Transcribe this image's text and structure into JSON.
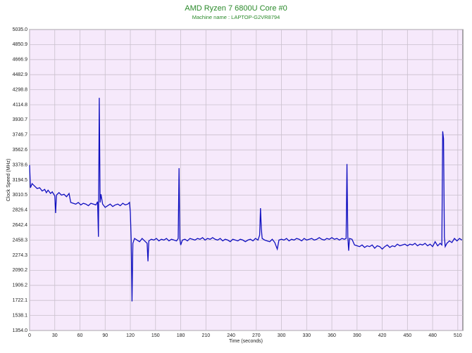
{
  "chart_data": {
    "type": "line",
    "title": "AMD Ryzen 7 6800U Core #0",
    "subtitle": "Machine name : LAPTOP-G2VR8794",
    "x_label": "Time (seconds)",
    "y_label": "Clock Speed (MHz)",
    "color": "#1010c0",
    "grid": true,
    "xlim": [
      0,
      516
    ],
    "ylim": [
      1354,
      5035
    ],
    "xticks": [
      0,
      30,
      60,
      90,
      120,
      150,
      180,
      210,
      240,
      270,
      300,
      330,
      360,
      390,
      420,
      450,
      480,
      510
    ],
    "yticks": [
      {
        "value": 1354,
        "label": "1354.0"
      },
      1538.1,
      1722.1,
      1906.2,
      2090.2,
      2274.3,
      2458.3,
      2642.4,
      2826.4,
      3010.5,
      3194.5,
      3378.6,
      3562.6,
      3746.7,
      3930.7,
      4114.8,
      4298.8,
      4482.9,
      4666.9,
      4850.9,
      {
        "value": 5035,
        "label": "5035.0"
      }
    ],
    "x": [
      0,
      1,
      3,
      6,
      9,
      12,
      15,
      18,
      20,
      22,
      25,
      27,
      30,
      31,
      32,
      35,
      38,
      41,
      44,
      47,
      49,
      52,
      55,
      58,
      61,
      64,
      67,
      70,
      73,
      76,
      79,
      81,
      82,
      83,
      84,
      85,
      87,
      90,
      93,
      96,
      99,
      102,
      105,
      108,
      111,
      114,
      117,
      119,
      120,
      121,
      122,
      123,
      125,
      128,
      131,
      134,
      137,
      140,
      141,
      142,
      145,
      148,
      151,
      154,
      157,
      160,
      163,
      166,
      169,
      172,
      175,
      177,
      178,
      179,
      180,
      182,
      185,
      188,
      191,
      194,
      197,
      200,
      203,
      206,
      209,
      212,
      215,
      218,
      221,
      224,
      227,
      230,
      233,
      236,
      239,
      242,
      245,
      248,
      251,
      254,
      257,
      260,
      263,
      266,
      269,
      272,
      274,
      275,
      276,
      277,
      280,
      283,
      286,
      289,
      292,
      295,
      297,
      300,
      303,
      306,
      309,
      312,
      315,
      318,
      321,
      324,
      327,
      330,
      333,
      336,
      339,
      342,
      345,
      348,
      351,
      354,
      357,
      360,
      363,
      366,
      369,
      372,
      375,
      377,
      378,
      379,
      380,
      381,
      384,
      387,
      390,
      393,
      396,
      399,
      402,
      405,
      408,
      411,
      414,
      417,
      420,
      423,
      426,
      429,
      432,
      435,
      438,
      441,
      444,
      447,
      450,
      453,
      456,
      459,
      462,
      465,
      468,
      471,
      474,
      477,
      480,
      483,
      486,
      489,
      491,
      492,
      493,
      494,
      495,
      497,
      500,
      503,
      506,
      509,
      512,
      515
    ],
    "values": [
      3378,
      3100,
      3150,
      3120,
      3090,
      3100,
      3060,
      3080,
      3040,
      3070,
      3030,
      3050,
      3000,
      2790,
      3010,
      3040,
      3010,
      3020,
      2990,
      3030,
      2920,
      2910,
      2900,
      2920,
      2890,
      2910,
      2900,
      2880,
      2910,
      2900,
      2890,
      2930,
      2500,
      4200,
      2920,
      3020,
      2900,
      2860,
      2880,
      2900,
      2870,
      2890,
      2900,
      2880,
      2910,
      2890,
      2900,
      2920,
      2800,
      2460,
      1710,
      2420,
      2480,
      2460,
      2440,
      2480,
      2450,
      2420,
      2200,
      2450,
      2470,
      2460,
      2480,
      2450,
      2470,
      2460,
      2480,
      2450,
      2470,
      2460,
      2450,
      2480,
      3340,
      2470,
      2400,
      2460,
      2470,
      2450,
      2480,
      2470,
      2460,
      2480,
      2470,
      2490,
      2460,
      2480,
      2470,
      2490,
      2470,
      2460,
      2480,
      2450,
      2470,
      2460,
      2440,
      2470,
      2460,
      2450,
      2470,
      2460,
      2440,
      2460,
      2470,
      2450,
      2480,
      2460,
      2520,
      2850,
      2600,
      2480,
      2460,
      2450,
      2440,
      2470,
      2430,
      2350,
      2460,
      2470,
      2460,
      2480,
      2450,
      2470,
      2460,
      2480,
      2470,
      2450,
      2480,
      2460,
      2470,
      2480,
      2460,
      2470,
      2490,
      2470,
      2460,
      2480,
      2470,
      2490,
      2470,
      2480,
      2460,
      2480,
      2470,
      2480,
      3390,
      2500,
      2330,
      2480,
      2470,
      2400,
      2390,
      2380,
      2400,
      2370,
      2390,
      2380,
      2400,
      2360,
      2390,
      2380,
      2350,
      2380,
      2400,
      2370,
      2390,
      2380,
      2410,
      2390,
      2400,
      2410,
      2390,
      2410,
      2400,
      2420,
      2390,
      2410,
      2400,
      2420,
      2390,
      2410,
      2380,
      2440,
      2390,
      2420,
      2400,
      3790,
      3700,
      2500,
      2380,
      2420,
      2450,
      2430,
      2480,
      2450,
      2480,
      2460
    ]
  }
}
